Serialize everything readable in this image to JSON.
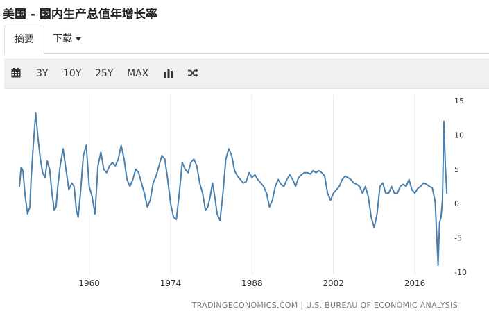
{
  "page": {
    "title": "美国 - 国内生产总值年增长率"
  },
  "tabs": {
    "summary": "摘要",
    "download": "下载"
  },
  "toolbar": {
    "calendar_icon": "calendar-icon",
    "range_3y": "3Y",
    "range_10y": "10Y",
    "range_25y": "25Y",
    "range_max": "MAX",
    "bar_chart_icon": "bar-chart-icon",
    "shuffle_icon": "shuffle-icon"
  },
  "chart_data": {
    "type": "line",
    "line_color": "#4a7fad",
    "xlim": [
      1948,
      2021.6
    ],
    "ylim": [
      -10,
      15
    ],
    "x_ticks": [
      "1960",
      "1974",
      "1988",
      "2002",
      "2016"
    ],
    "y_ticks": [
      "15",
      "10",
      "5",
      "0",
      "-5",
      "-10"
    ],
    "grid": "vertical",
    "y_axis_position": "right",
    "series": [
      {
        "x": [
          1948.0,
          1948.3,
          1948.6,
          1949.0,
          1949.4,
          1949.8,
          1950.0,
          1950.4,
          1950.8,
          1951.2,
          1951.6,
          1952.0,
          1952.4,
          1952.8,
          1953.2,
          1953.6,
          1954.0,
          1954.3,
          1954.6,
          1955.0,
          1955.5,
          1956.0,
          1956.5,
          1957.0,
          1957.4,
          1957.8,
          1958.1,
          1958.5,
          1959.0,
          1959.5,
          1960.0,
          1960.5,
          1961.0,
          1961.5,
          1962.0,
          1962.5,
          1963.0,
          1963.5,
          1964.0,
          1964.5,
          1965.0,
          1965.5,
          1966.0,
          1966.5,
          1967.0,
          1967.5,
          1968.0,
          1968.5,
          1969.0,
          1969.5,
          1970.0,
          1970.5,
          1971.0,
          1971.5,
          1972.0,
          1972.5,
          1973.0,
          1973.5,
          1974.0,
          1974.5,
          1975.0,
          1975.5,
          1976.0,
          1976.5,
          1977.0,
          1977.5,
          1978.0,
          1978.5,
          1979.0,
          1979.5,
          1980.0,
          1980.4,
          1980.8,
          1981.2,
          1981.6,
          1982.0,
          1982.5,
          1983.0,
          1983.5,
          1984.0,
          1984.5,
          1985.0,
          1985.5,
          1986.0,
          1986.5,
          1987.0,
          1987.5,
          1988.0,
          1988.5,
          1989.0,
          1989.5,
          1990.0,
          1990.5,
          1991.0,
          1991.5,
          1992.0,
          1992.5,
          1993.0,
          1993.5,
          1994.0,
          1994.5,
          1995.0,
          1995.5,
          1996.0,
          1996.5,
          1997.0,
          1997.5,
          1998.0,
          1998.5,
          1999.0,
          1999.5,
          2000.0,
          2000.5,
          2001.0,
          2001.5,
          2002.0,
          2002.5,
          2003.0,
          2003.5,
          2004.0,
          2004.5,
          2005.0,
          2005.5,
          2006.0,
          2006.5,
          2007.0,
          2007.5,
          2008.0,
          2008.5,
          2009.0,
          2009.5,
          2010.0,
          2010.5,
          2011.0,
          2011.5,
          2012.0,
          2012.5,
          2013.0,
          2013.5,
          2014.0,
          2014.5,
          2015.0,
          2015.5,
          2016.0,
          2016.5,
          2017.0,
          2017.5,
          2018.0,
          2018.5,
          2019.0,
          2019.5,
          2020.0,
          2020.25,
          2020.5,
          2020.75,
          2021.0,
          2021.25,
          2021.5
        ],
        "y": [
          2.5,
          5.3,
          4.8,
          1.0,
          -1.5,
          -0.5,
          3.5,
          8.7,
          13.2,
          9.5,
          6.5,
          4.5,
          3.8,
          6.2,
          5.0,
          1.5,
          -1.0,
          -0.5,
          2.5,
          5.5,
          8.0,
          5.0,
          2.0,
          3.0,
          2.5,
          -1.0,
          -2.0,
          1.5,
          7.0,
          8.5,
          2.5,
          1.0,
          -1.5,
          5.5,
          7.5,
          5.0,
          4.5,
          5.5,
          6.0,
          5.5,
          6.5,
          8.5,
          6.5,
          3.5,
          2.5,
          3.5,
          5.0,
          4.5,
          3.0,
          1.5,
          -0.5,
          0.5,
          3.0,
          4.0,
          5.5,
          7.0,
          6.5,
          3.5,
          0.0,
          -2.0,
          -2.3,
          1.5,
          6.0,
          5.0,
          4.5,
          6.0,
          6.5,
          5.5,
          3.0,
          1.5,
          -1.0,
          -0.5,
          1.0,
          3.0,
          1.0,
          -1.5,
          -2.5,
          1.5,
          6.5,
          8.0,
          7.0,
          4.8,
          4.0,
          3.5,
          3.0,
          3.2,
          4.5,
          3.8,
          4.2,
          3.5,
          3.0,
          2.5,
          1.5,
          -0.5,
          0.5,
          2.5,
          3.5,
          2.8,
          2.5,
          3.5,
          4.2,
          3.5,
          2.5,
          3.8,
          4.2,
          4.5,
          4.5,
          4.3,
          4.8,
          4.5,
          4.8,
          4.5,
          4.0,
          1.5,
          0.5,
          1.5,
          2.0,
          2.5,
          3.5,
          4.0,
          3.8,
          3.5,
          3.0,
          2.8,
          2.5,
          1.5,
          2.5,
          1.0,
          -2.0,
          -3.5,
          -1.5,
          2.5,
          3.0,
          1.5,
          1.5,
          2.5,
          1.5,
          1.5,
          2.5,
          2.8,
          2.5,
          3.5,
          2.0,
          1.5,
          2.2,
          2.5,
          3.0,
          2.8,
          2.5,
          2.3,
          0.3,
          -9.0,
          -2.8,
          -2.0,
          0.5,
          12.0,
          5.5,
          1.5
        ]
      }
    ]
  },
  "footer": {
    "source": "TRADINGECONOMICS.COM | U.S. BUREAU OF ECONOMIC ANALYSIS"
  }
}
